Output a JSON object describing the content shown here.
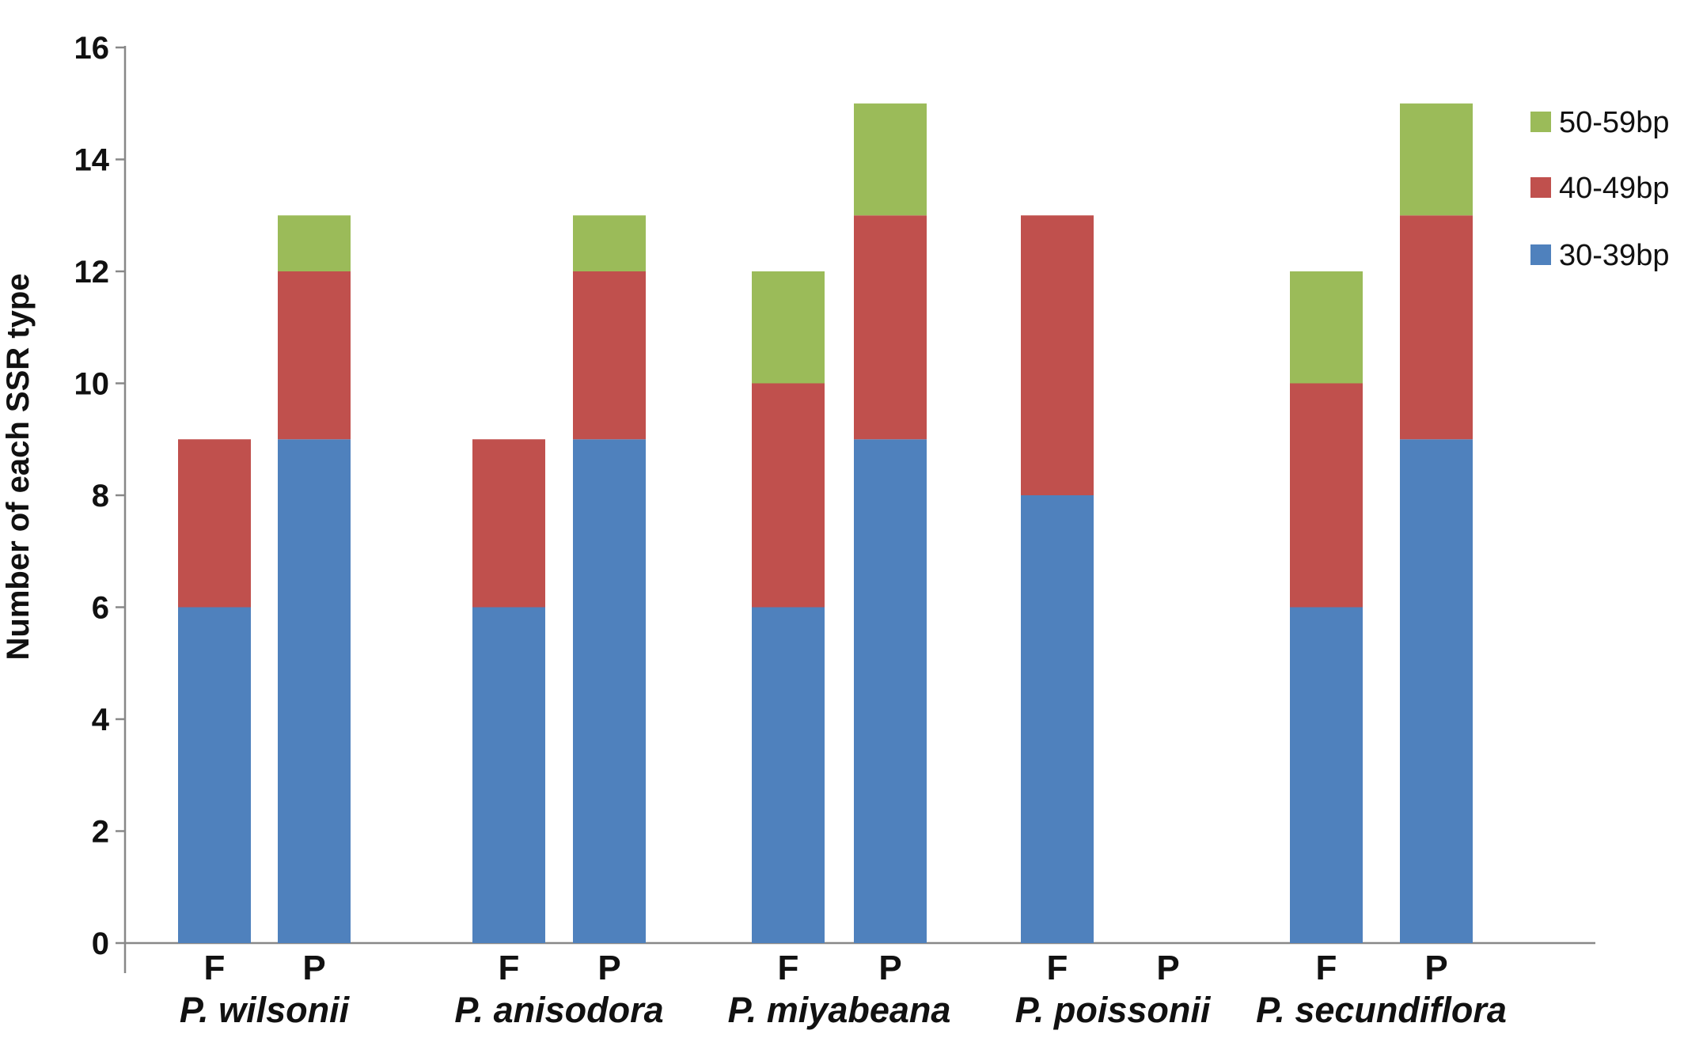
{
  "chart_data": {
    "type": "bar",
    "stacked": true,
    "ylabel": "Number of each SSR type",
    "ylim": [
      0,
      16
    ],
    "yticks": [
      0,
      2,
      4,
      6,
      8,
      10,
      12,
      14,
      16
    ],
    "grid": false,
    "legend_position": "right",
    "groups": [
      "P. wilsonii",
      "P. anisodora",
      "P. miyabeana",
      "P. poissonii",
      "P. secundiflora"
    ],
    "categories": [
      "F",
      "P",
      "F",
      "P",
      "F",
      "P",
      "F",
      "P",
      "F",
      "P"
    ],
    "series": [
      {
        "name": "30-39bp",
        "color": "#4f81bd",
        "values": [
          6,
          9,
          6,
          9,
          6,
          9,
          8,
          0,
          6,
          9
        ]
      },
      {
        "name": "40-49bp",
        "color": "#c0504d",
        "values": [
          3,
          3,
          3,
          3,
          4,
          4,
          5,
          0,
          4,
          4
        ]
      },
      {
        "name": "50-59bp",
        "color": "#9bbb59",
        "values": [
          0,
          1,
          0,
          1,
          2,
          2,
          0,
          0,
          2,
          2
        ]
      }
    ],
    "legend_order": [
      "50-59bp",
      "40-49bp",
      "30-39bp"
    ]
  }
}
